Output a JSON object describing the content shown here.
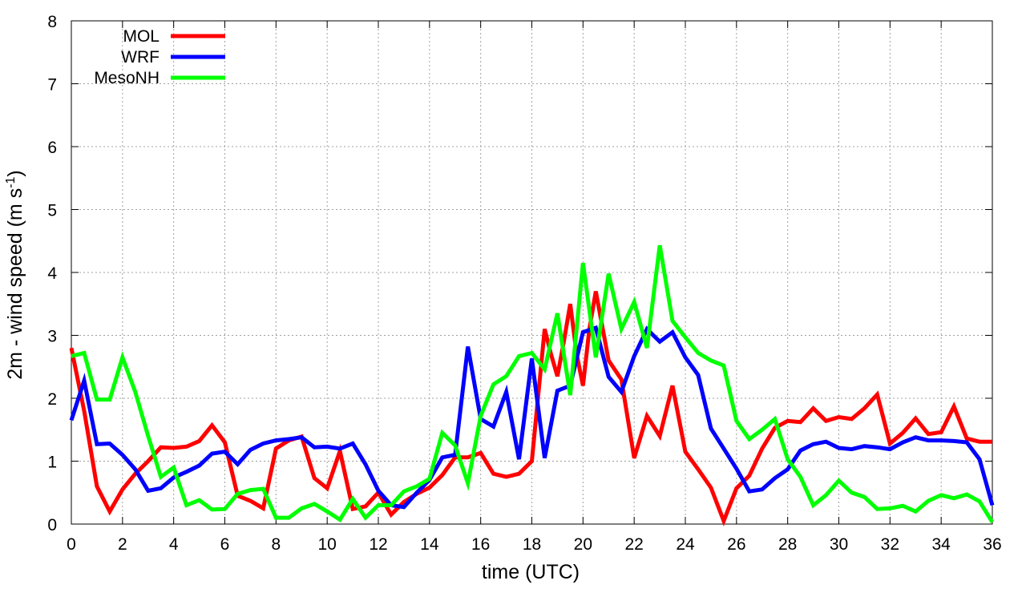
{
  "chart_data": {
    "type": "line",
    "xlabel": "time (UTC)",
    "ylabel_main": "2m - wind speed  (m s",
    "ylabel_sup": "-1",
    "ylabel_end": ")",
    "xlim": [
      0,
      36
    ],
    "ylim": [
      0,
      8
    ],
    "xticks": [
      "0",
      "2",
      "4",
      "6",
      "8",
      "10",
      "12",
      "14",
      "16",
      "18",
      "20",
      "22",
      "24",
      "26",
      "28",
      "30",
      "32",
      "34",
      "36"
    ],
    "yticks": [
      "0",
      "1",
      "2",
      "3",
      "4",
      "5",
      "6",
      "7",
      "8"
    ],
    "grid": true,
    "legend_position": "top-left",
    "series": [
      {
        "name": "MOL",
        "color": "#ff0000",
        "x": [
          0,
          0.5,
          1,
          1.5,
          2,
          2.5,
          3,
          3.5,
          4,
          4.5,
          5,
          5.5,
          6,
          6.5,
          7,
          7.5,
          8,
          8.5,
          9,
          9.5,
          10,
          10.5,
          11,
          11.5,
          12,
          12.5,
          13,
          13.5,
          14,
          14.5,
          15,
          15.5,
          16,
          16.5,
          17,
          17.5,
          18,
          18.5,
          18.75,
          19,
          19.25,
          19.5,
          19.75,
          20,
          20.25,
          20.5,
          21,
          21.5,
          22,
          22.5,
          23,
          23.5,
          24,
          24.5,
          25,
          25.5,
          26,
          26.5,
          27,
          27.5,
          28,
          28.5,
          29,
          29.5,
          30,
          30.5,
          31,
          31.5,
          32,
          32.5,
          33,
          33.5,
          34,
          34.5,
          35,
          35.5,
          36
        ],
        "y": [
          2.8,
          1.8,
          0.6,
          0.2,
          0.55,
          0.8,
          1.0,
          1.22,
          1.21,
          1.23,
          1.32,
          1.57,
          1.3,
          0.45,
          0.37,
          0.25,
          1.2,
          1.33,
          1.39,
          0.73,
          0.57,
          1.16,
          0.24,
          0.28,
          0.5,
          0.15,
          0.35,
          0.48,
          0.58,
          0.78,
          1.06,
          1.06,
          1.13,
          0.8,
          0.75,
          0.8,
          1.0,
          3.1,
          2.7,
          2.35,
          2.9,
          3.5,
          2.7,
          2.2,
          3.1,
          3.7,
          2.6,
          2.3,
          1.05,
          1.72,
          1.4,
          2.2,
          1.15,
          0.87,
          0.58,
          0.05,
          0.57,
          0.77,
          1.2,
          1.53,
          1.64,
          1.62,
          1.84,
          1.64,
          1.7,
          1.67,
          1.84,
          2.06,
          1.28,
          1.45,
          1.68,
          1.43,
          1.46,
          1.87,
          1.36,
          1.31,
          1.31
        ]
      },
      {
        "name": "WRF",
        "color": "#0000ff",
        "x": [
          0,
          0.5,
          1,
          1.5,
          2,
          2.5,
          3,
          3.5,
          4,
          4.5,
          5,
          5.5,
          6,
          6.5,
          7,
          7.5,
          8,
          8.5,
          9,
          9.5,
          10,
          10.5,
          11,
          11.5,
          12,
          12.5,
          13,
          13.5,
          14,
          14.5,
          15,
          15.5,
          16,
          16.5,
          17,
          17.5,
          18,
          18.5,
          19,
          19.5,
          20,
          20.5,
          21,
          21.5,
          22,
          22.5,
          23,
          23.5,
          24,
          24.5,
          25,
          25.5,
          26,
          26.5,
          27,
          27.5,
          28,
          28.5,
          29,
          29.5,
          30,
          30.5,
          31,
          31.5,
          32,
          32.5,
          33,
          33.5,
          34,
          34.5,
          35,
          35.5,
          36
        ],
        "y": [
          1.65,
          2.28,
          1.27,
          1.28,
          1.1,
          0.87,
          0.53,
          0.57,
          0.74,
          0.83,
          0.93,
          1.12,
          1.15,
          0.95,
          1.18,
          1.28,
          1.33,
          1.35,
          1.38,
          1.22,
          1.23,
          1.2,
          1.28,
          0.95,
          0.53,
          0.3,
          0.27,
          0.5,
          0.7,
          1.06,
          1.1,
          2.82,
          1.67,
          1.55,
          2.1,
          1.03,
          2.63,
          1.05,
          2.12,
          2.2,
          3.05,
          3.12,
          2.34,
          2.1,
          2.67,
          3.1,
          2.9,
          3.05,
          2.65,
          2.37,
          1.52,
          1.2,
          0.88,
          0.52,
          0.55,
          0.73,
          0.87,
          1.17,
          1.27,
          1.31,
          1.21,
          1.19,
          1.24,
          1.22,
          1.19,
          1.3,
          1.38,
          1.33,
          1.33,
          1.32,
          1.3,
          1.03,
          0.3
        ]
      },
      {
        "name": "MesoNH",
        "color": "#00ff00",
        "x": [
          0,
          0.5,
          1,
          1.5,
          2,
          2.5,
          3,
          3.5,
          4,
          4.5,
          5,
          5.5,
          6,
          6.5,
          7,
          7.5,
          8,
          8.5,
          9,
          9.5,
          10,
          10.5,
          11,
          11.5,
          12,
          12.5,
          13,
          13.5,
          14,
          14.5,
          15,
          15.5,
          16,
          16.5,
          17,
          17.5,
          18,
          18.5,
          19,
          19.5,
          20,
          20.5,
          21,
          21.5,
          22,
          22.5,
          23,
          23.5,
          24,
          24.5,
          25,
          25.5,
          26,
          26.5,
          27,
          27.5,
          28,
          28.5,
          29,
          29.5,
          30,
          30.5,
          31,
          31.5,
          32,
          32.5,
          33,
          33.5,
          34,
          34.5,
          35,
          35.5,
          36
        ],
        "y": [
          2.67,
          2.72,
          1.98,
          1.98,
          2.65,
          2.1,
          1.4,
          0.75,
          0.9,
          0.3,
          0.38,
          0.23,
          0.24,
          0.48,
          0.54,
          0.56,
          0.1,
          0.1,
          0.25,
          0.32,
          0.2,
          0.07,
          0.4,
          0.1,
          0.3,
          0.3,
          0.52,
          0.6,
          0.72,
          1.45,
          1.25,
          0.65,
          1.72,
          2.22,
          2.35,
          2.67,
          2.72,
          2.46,
          3.35,
          2.05,
          4.15,
          2.65,
          3.98,
          3.1,
          3.53,
          2.8,
          4.43,
          3.23,
          2.97,
          2.72,
          2.6,
          2.52,
          1.64,
          1.35,
          1.5,
          1.67,
          1.03,
          0.75,
          0.3,
          0.46,
          0.69,
          0.5,
          0.43,
          0.24,
          0.25,
          0.29,
          0.2,
          0.37,
          0.46,
          0.41,
          0.47,
          0.36,
          0.03
        ]
      }
    ]
  }
}
